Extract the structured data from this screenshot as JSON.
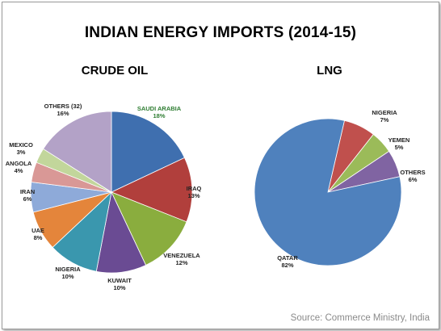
{
  "title": "INDIAN ENERGY IMPORTS (2014-15)",
  "source": "Source: Commerce Ministry, India",
  "chart_data": [
    {
      "type": "pie",
      "title": "CRUDE OIL",
      "slices": [
        {
          "label": "SAUDI ARABIA",
          "value": 18,
          "pct_label": "18%",
          "color": "#3f6faf"
        },
        {
          "label": "IRAQ",
          "value": 13,
          "pct_label": "13%",
          "color": "#b13f3c"
        },
        {
          "label": "VENEZUELA",
          "value": 12,
          "pct_label": "12%",
          "color": "#8aad3e"
        },
        {
          "label": "KUWAIT",
          "value": 10,
          "pct_label": "10%",
          "color": "#6a4b93"
        },
        {
          "label": "NIGERIA",
          "value": 10,
          "pct_label": "10%",
          "color": "#3a97ae"
        },
        {
          "label": "UAE",
          "value": 8,
          "pct_label": "8%",
          "color": "#e4853b"
        },
        {
          "label": "IRAN",
          "value": 6,
          "pct_label": "6%",
          "color": "#8eaad9"
        },
        {
          "label": "ANGOLA",
          "value": 4,
          "pct_label": "4%",
          "color": "#d99896"
        },
        {
          "label": "MEXICO",
          "value": 3,
          "pct_label": "3%",
          "color": "#c2d69b"
        },
        {
          "label": "OTHERS (32)",
          "value": 16,
          "pct_label": "16%",
          "color": "#b3a2c7"
        }
      ]
    },
    {
      "type": "pie",
      "title": "LNG",
      "slices": [
        {
          "label": "NIGERIA",
          "value": 7,
          "pct_label": "7%",
          "color": "#c0504d"
        },
        {
          "label": "YEMEN",
          "value": 5,
          "pct_label": "5%",
          "color": "#9bbb59"
        },
        {
          "label": "OTHERS",
          "value": 6,
          "pct_label": "6%",
          "color": "#8064a2"
        },
        {
          "label": "QATAR",
          "value": 82,
          "pct_label": "82%",
          "color": "#4f81bd"
        }
      ]
    }
  ]
}
